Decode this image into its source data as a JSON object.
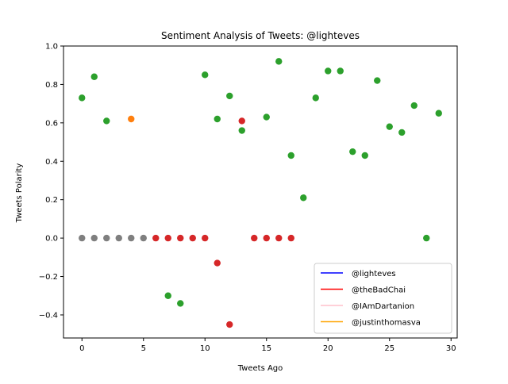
{
  "chart_data": {
    "type": "scatter",
    "title": "Sentiment Analysis of Tweets: @lighteves",
    "xlabel": "Tweets Ago",
    "ylabel": "Tweets Polarity",
    "xlim": [
      -1.5,
      30.5
    ],
    "ylim": [
      -0.52,
      1.0
    ],
    "xticks": [
      0,
      5,
      10,
      15,
      20,
      25,
      30
    ],
    "yticks": [
      -0.4,
      -0.2,
      0.0,
      0.2,
      0.4,
      0.6,
      0.8,
      1.0
    ],
    "ytick_labels": [
      "−0.4",
      "−0.2",
      "0.0",
      "0.2",
      "0.4",
      "0.6",
      "0.8",
      "1.0"
    ],
    "grid": false,
    "legend_position": "lower-right",
    "legend": [
      {
        "label": "@lighteves",
        "color": "#0000ff"
      },
      {
        "label": "@theBadChai",
        "color": "#ff0000"
      },
      {
        "label": "@IAmDartanion",
        "color": "#ffc0cb"
      },
      {
        "label": "@justinthomasva",
        "color": "#ffa500"
      }
    ],
    "series": [
      {
        "color": "#2ca02c",
        "points": [
          [
            0,
            0.73
          ],
          [
            1,
            0.84
          ],
          [
            2,
            0.61
          ],
          [
            7,
            -0.3
          ],
          [
            8,
            -0.34
          ],
          [
            10,
            0.85
          ],
          [
            11,
            0.62
          ],
          [
            12,
            0.74
          ],
          [
            13,
            0.56
          ],
          [
            15,
            0.63
          ],
          [
            16,
            0.92
          ],
          [
            17,
            0.43
          ],
          [
            18,
            0.21
          ],
          [
            19,
            0.73
          ],
          [
            20,
            0.87
          ],
          [
            21,
            0.87
          ],
          [
            22,
            0.45
          ],
          [
            23,
            0.43
          ],
          [
            24,
            0.82
          ],
          [
            25,
            0.58
          ],
          [
            26,
            0.55
          ],
          [
            27,
            0.69
          ],
          [
            28,
            0.0
          ],
          [
            29,
            0.65
          ]
        ]
      },
      {
        "color": "#ff7f0e",
        "points": [
          [
            4,
            0.62
          ]
        ]
      },
      {
        "color": "#d62728",
        "points": [
          [
            6,
            0.0
          ],
          [
            7,
            0.0
          ],
          [
            8,
            0.0
          ],
          [
            9,
            0.0
          ],
          [
            10,
            0.0
          ],
          [
            11,
            -0.13
          ],
          [
            12,
            -0.45
          ],
          [
            13,
            0.61
          ],
          [
            14,
            0.0
          ],
          [
            15,
            0.0
          ],
          [
            16,
            0.0
          ],
          [
            17,
            0.0
          ]
        ]
      },
      {
        "color": "#7f7f7f",
        "points": [
          [
            0,
            0.0
          ],
          [
            1,
            0.0
          ],
          [
            2,
            0.0
          ],
          [
            3,
            0.0
          ],
          [
            4,
            0.0
          ],
          [
            5,
            0.0
          ]
        ]
      }
    ]
  }
}
